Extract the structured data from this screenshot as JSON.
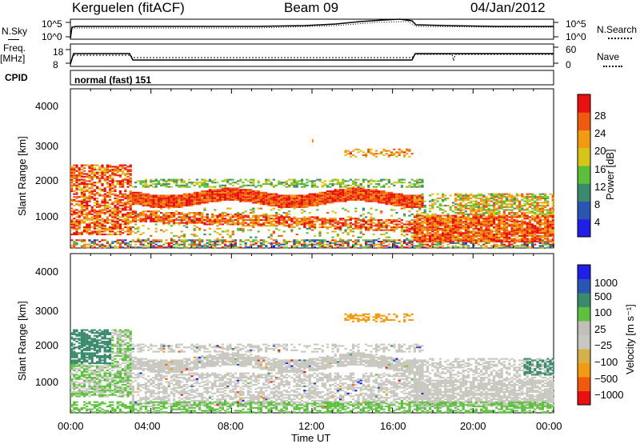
{
  "header": {
    "station": "Kerguelen (fitACF)",
    "beam": "Beam 09",
    "date": "04/Jan/2012"
  },
  "panels": {
    "nsky": {
      "label": "N.Sky",
      "ticks": [
        "10^5",
        "10^0"
      ],
      "right_ticks": [
        "10^5",
        "10^0"
      ],
      "right_label": "N.Search"
    },
    "freq": {
      "label_top": "Freq.",
      "label_bottom": "[MHz]",
      "ticks": [
        "18",
        "8"
      ],
      "right_ticks": [
        "60",
        "0"
      ],
      "right_label": "Nave"
    },
    "cpid": {
      "label": "CPID",
      "value": "normal (fast) 151"
    }
  },
  "colors": {
    "power": [
      "#1f1fe6",
      "#2a56b3",
      "#3c8a6e",
      "#5bbf3a",
      "#d6c418",
      "#f29b12",
      "#f05a10",
      "#e81010"
    ],
    "velocity": [
      "#e81010",
      "#f05a10",
      "#f29b12",
      "#d6b04a",
      "#c8c8c0",
      "#c0c0b8",
      "#5fc040",
      "#3c8a6e",
      "#2a56b3",
      "#1f1fe6"
    ]
  },
  "chart_data": [
    {
      "type": "heatmap",
      "name": "power-panel",
      "ylabel": "Slant Range [km]",
      "yticks": [
        "4000",
        "3000",
        "2000",
        "1000"
      ],
      "ylim": [
        180,
        4600
      ],
      "colorbar_label": "Power [dB]",
      "colorbar_ticks": [
        "28",
        "24",
        "20",
        "16",
        "12",
        "8",
        "4"
      ],
      "colorbar_range": [
        0,
        32
      ]
    },
    {
      "type": "heatmap",
      "name": "velocity-panel",
      "ylabel": "Slant Range [km]",
      "yticks": [
        "4000",
        "3000",
        "2000",
        "1000"
      ],
      "ylim": [
        180,
        4600
      ],
      "colorbar_label": "Velocity [m s⁻¹]",
      "colorbar_ticks": [
        "1000",
        "500",
        "100",
        "25",
        "−25",
        "−100",
        "−500",
        "−1000"
      ]
    }
  ],
  "xaxis": {
    "label": "Time UT",
    "ticks": [
      "00:00",
      "04:00",
      "08:00",
      "12:00",
      "16:00",
      "20:00",
      "00:00"
    ],
    "range": [
      0,
      24
    ]
  }
}
